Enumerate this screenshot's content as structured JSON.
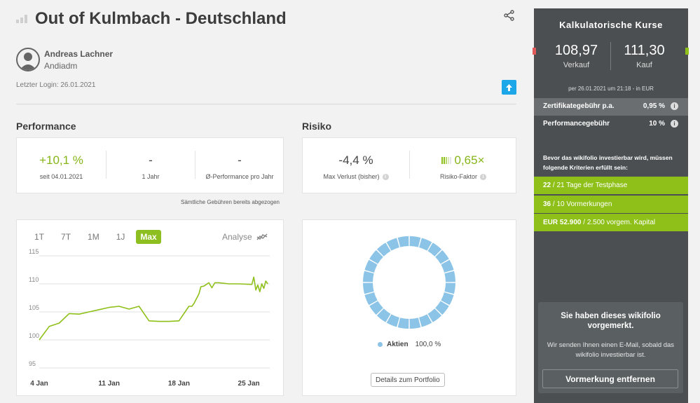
{
  "header": {
    "title": "Out of Kulmbach - Deutschland",
    "user_name": "Andreas Lachner",
    "user_handle": "Andiadm",
    "last_login": "Letzter Login: 26.01.2021"
  },
  "performance": {
    "heading": "Performance",
    "kpis": [
      {
        "value": "+10,1 %",
        "label": "seit 04.01.2021"
      },
      {
        "value": "-",
        "label": "1 Jahr"
      },
      {
        "value": "-",
        "label": "Ø-Performance pro Jahr"
      }
    ],
    "fee_note": "Sämtliche Gebühren bereits abgezogen"
  },
  "risk": {
    "heading": "Risiko",
    "max_loss_value": "-4,4 %",
    "max_loss_label": "Max Verlust (bisher)",
    "risk_factor_value": "0,65×",
    "risk_factor_label": "Risiko-Faktor"
  },
  "chart_tabs": {
    "items": [
      "1T",
      "7T",
      "1M",
      "1J",
      "Max"
    ],
    "active": "Max",
    "analyse_label": "Analyse"
  },
  "chart_data": {
    "type": "line",
    "title": "",
    "xlabel": "",
    "ylabel": "",
    "ylim": [
      95,
      115
    ],
    "yticks": [
      95,
      100,
      105,
      110,
      115
    ],
    "xticks": [
      {
        "day": 4,
        "label": "4 Jan"
      },
      {
        "day": 11,
        "label": "11 Jan"
      },
      {
        "day": 18,
        "label": "18 Jan"
      },
      {
        "day": 25,
        "label": "25 Jan"
      }
    ],
    "series": [
      {
        "name": "Performance",
        "color": "#8ec019",
        "x": [
          4,
          5,
          6,
          7,
          8,
          9,
          10,
          11,
          12,
          13,
          14,
          15,
          16,
          17,
          18,
          19,
          19.3,
          19.5,
          20,
          20.2,
          20.5,
          21,
          21.3,
          21.6,
          22,
          23,
          24,
          25.3,
          25.5,
          25.7,
          25.9,
          26.1,
          26.3,
          26.5,
          26.7,
          26.9
        ],
        "y": [
          100.0,
          102.4,
          103.0,
          104.7,
          104.6,
          105.0,
          105.4,
          105.8,
          106.0,
          105.5,
          106.0,
          103.4,
          103.3,
          103.3,
          103.4,
          106.0,
          106.0,
          106.5,
          108.2,
          109.5,
          109.6,
          110.2,
          109.3,
          110.2,
          110.2,
          110.0,
          110.0,
          109.9,
          111.2,
          108.9,
          109.8,
          108.6,
          110.0,
          109.2,
          110.5,
          110.0
        ]
      }
    ]
  },
  "portfolio": {
    "legend_label": "Aktien",
    "legend_value": "100,0 %",
    "details_label": "Details zum Portfolio",
    "segments": 24,
    "color": "#8cc4e8"
  },
  "sidebar": {
    "title": "Kalkulatorische Kurse",
    "sell_value": "108,97",
    "sell_label": "Verkauf",
    "buy_value": "111,30",
    "buy_label": "Kauf",
    "price_date": "per 26.01.2021 um 21:18 - in EUR",
    "fees": [
      {
        "label": "Zertifikategebühr p.a.",
        "value": "0,95 %"
      },
      {
        "label": "Performancegebühr",
        "value": "10 %"
      }
    ],
    "criteria_intro": "Bevor das wikifolio investierbar wird, müssen folgende Kriterien erfüllt sein:",
    "criteria": [
      {
        "bold": "22",
        "rest": " / 21 Tage der Testphase"
      },
      {
        "bold": "36",
        "rest": " / 10 Vormerkungen"
      },
      {
        "bold": "EUR 52.900",
        "rest": " / 2.500 vorgem. Kapital"
      }
    ],
    "marked_title": "Sie haben dieses wikifolio vorgemerkt.",
    "marked_text": "Wir senden Ihnen einen E-Mail, sobald das wikifolio investierbar ist.",
    "remove_button": "Vormerkung entfernen"
  },
  "colors": {
    "green": "#8ec019",
    "blue": "#1ea7e8",
    "sidebar": "#4b4f52",
    "red": "#e05a5a"
  }
}
